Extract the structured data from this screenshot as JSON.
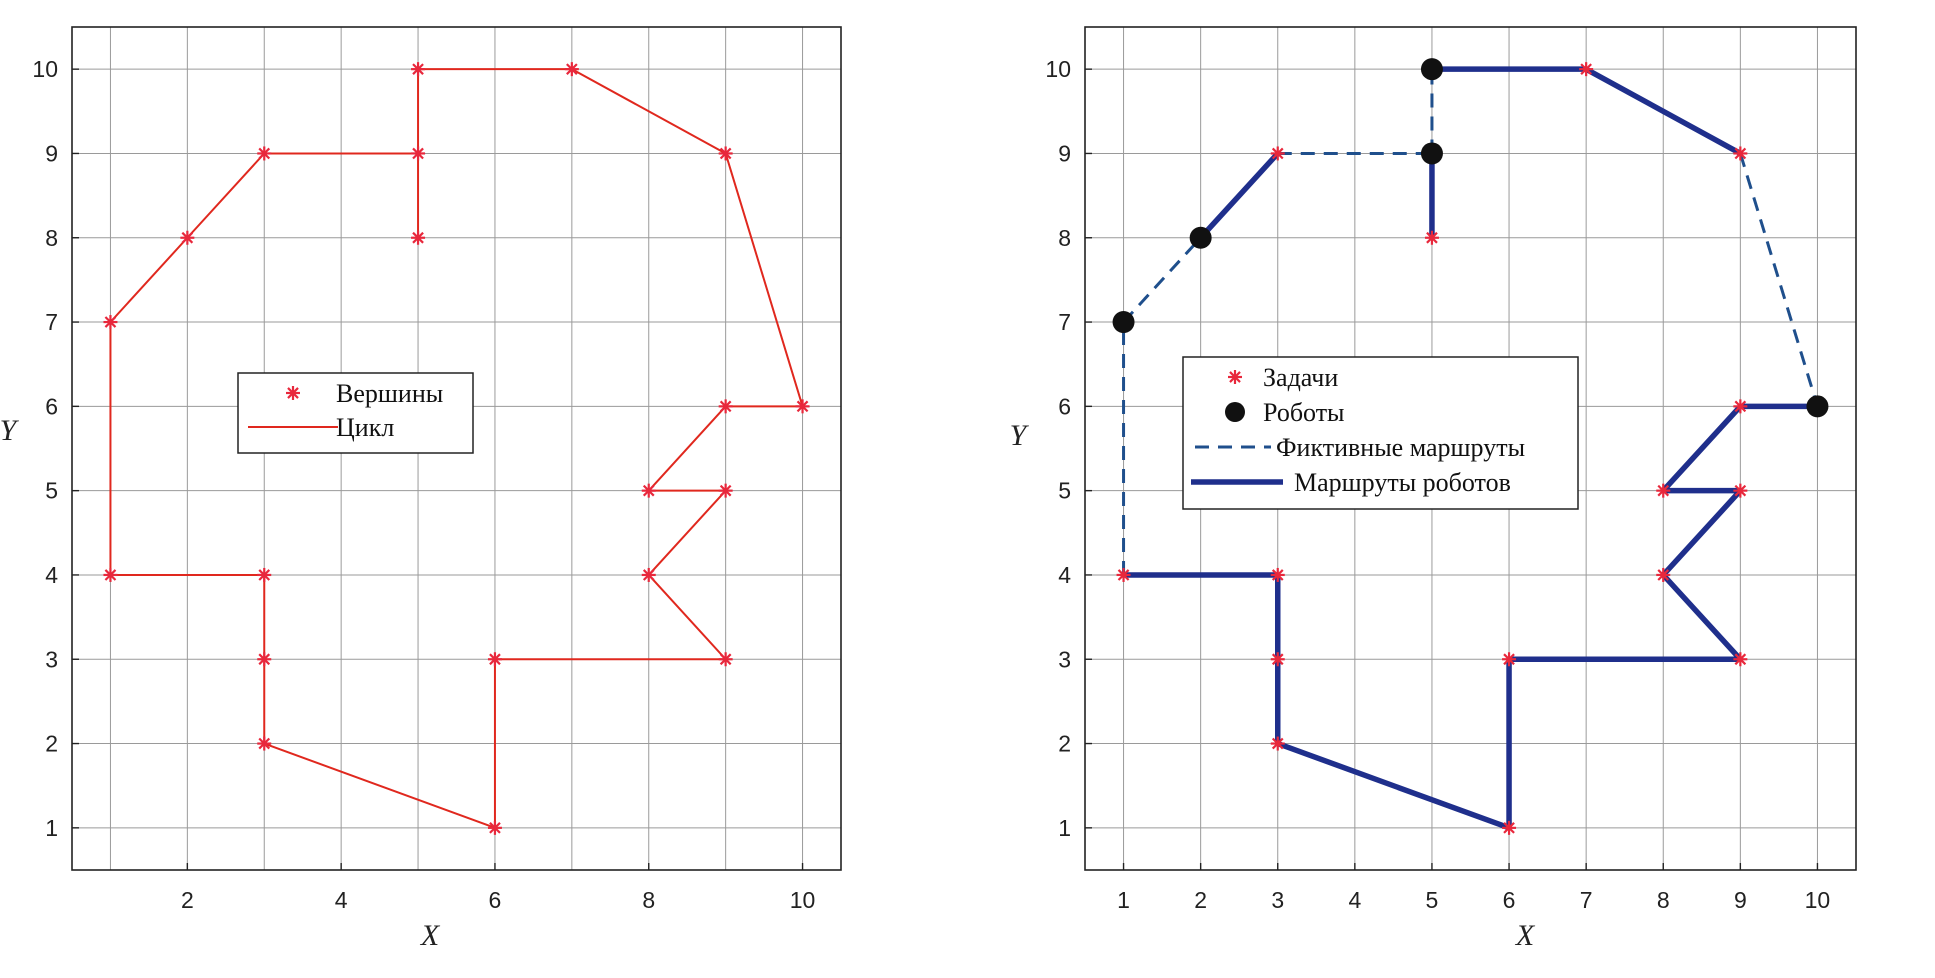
{
  "chart_data": [
    {
      "type": "line",
      "xlabel": "X",
      "ylabel": "Y",
      "xlim": [
        0.5,
        10.5
      ],
      "ylim": [
        0.5,
        10.5
      ],
      "x_gridlines": [
        1,
        2,
        3,
        4,
        5,
        6,
        7,
        8,
        9,
        10
      ],
      "y_gridlines": [
        1,
        2,
        3,
        4,
        5,
        6,
        7,
        8,
        9,
        10
      ],
      "xticks": [
        2,
        4,
        6,
        8,
        10
      ],
      "yticks": [
        1,
        2,
        3,
        4,
        5,
        6,
        7,
        8,
        9,
        10
      ],
      "grid": true,
      "colors": {
        "marker": "#e8283c",
        "line": "#e0281e"
      },
      "legend": {
        "placement": "center",
        "entries": [
          {
            "label": "Вершины",
            "kind": "marker"
          },
          {
            "label": "Цикл",
            "kind": "line"
          }
        ]
      },
      "series": [
        {
          "name": "Цикл",
          "kind": "line",
          "points": [
            [
              1,
              4
            ],
            [
              3,
              4
            ],
            [
              3,
              3
            ],
            [
              3,
              2
            ],
            [
              6,
              1
            ],
            [
              6,
              3
            ],
            [
              9,
              3
            ],
            [
              8,
              4
            ],
            [
              9,
              5
            ],
            [
              8,
              5
            ],
            [
              9,
              6
            ],
            [
              10,
              6
            ],
            [
              9,
              9
            ],
            [
              7,
              10
            ],
            [
              5,
              10
            ],
            [
              5,
              9
            ],
            [
              5,
              8
            ],
            [
              5,
              9
            ],
            [
              3,
              9
            ],
            [
              2,
              8
            ],
            [
              1,
              7
            ],
            [
              1,
              4
            ]
          ]
        },
        {
          "name": "Вершины",
          "kind": "marker",
          "points": [
            [
              1,
              4
            ],
            [
              3,
              4
            ],
            [
              3,
              3
            ],
            [
              3,
              2
            ],
            [
              6,
              1
            ],
            [
              6,
              3
            ],
            [
              9,
              3
            ],
            [
              8,
              4
            ],
            [
              9,
              5
            ],
            [
              8,
              5
            ],
            [
              9,
              6
            ],
            [
              10,
              6
            ],
            [
              9,
              9
            ],
            [
              7,
              10
            ],
            [
              5,
              10
            ],
            [
              5,
              9
            ],
            [
              5,
              8
            ],
            [
              3,
              9
            ],
            [
              2,
              8
            ],
            [
              1,
              7
            ]
          ]
        }
      ]
    },
    {
      "type": "line",
      "xlabel": "X",
      "ylabel": "Y",
      "xlim": [
        0.5,
        10.5
      ],
      "ylim": [
        0.5,
        10.5
      ],
      "x_gridlines": [
        1,
        2,
        3,
        4,
        5,
        6,
        7,
        8,
        9,
        10
      ],
      "y_gridlines": [
        1,
        2,
        3,
        4,
        5,
        6,
        7,
        8,
        9,
        10
      ],
      "xticks": [
        1,
        2,
        3,
        4,
        5,
        6,
        7,
        8,
        9,
        10
      ],
      "yticks": [
        1,
        2,
        3,
        4,
        5,
        6,
        7,
        8,
        9,
        10
      ],
      "grid": true,
      "colors": {
        "task": "#e8283c",
        "robot": "#111111",
        "route": "#1f2f8c",
        "dummy": "#1f4f8c"
      },
      "legend": {
        "placement": "center-left",
        "entries": [
          {
            "label": "Задачи",
            "kind": "marker"
          },
          {
            "label": "Роботы",
            "kind": "dot"
          },
          {
            "label": "Фиктивные маршруты",
            "kind": "dashed"
          },
          {
            "label": "Маршруты роботов",
            "kind": "thick"
          }
        ]
      },
      "series": [
        {
          "name": "Маршруты роботов",
          "kind": "thick",
          "points": [
            [
              1,
              7
            ],
            [
              1,
              7
            ]
          ]
        },
        {
          "name": "Маршруты роботов",
          "kind": "thick",
          "points": [
            [
              2,
              8
            ],
            [
              3,
              9
            ]
          ]
        },
        {
          "name": "Маршруты роботов",
          "kind": "thick",
          "points": [
            [
              5,
              9
            ],
            [
              5,
              8
            ]
          ]
        },
        {
          "name": "Маршруты роботов",
          "kind": "thick",
          "points": [
            [
              5,
              10
            ],
            [
              7,
              10
            ],
            [
              9,
              9
            ]
          ]
        },
        {
          "name": "Маршруты роботов",
          "kind": "thick",
          "points": [
            [
              10,
              6
            ],
            [
              9,
              6
            ],
            [
              8,
              5
            ],
            [
              9,
              5
            ],
            [
              8,
              4
            ],
            [
              9,
              3
            ],
            [
              6,
              3
            ],
            [
              6,
              1
            ],
            [
              3,
              2
            ],
            [
              3,
              3
            ],
            [
              3,
              4
            ],
            [
              1,
              4
            ]
          ]
        },
        {
          "name": "Фиктивные маршруты",
          "kind": "dashed",
          "points": [
            [
              1,
              7
            ],
            [
              2,
              8
            ]
          ]
        },
        {
          "name": "Фиктивные маршруты",
          "kind": "dashed",
          "points": [
            [
              3,
              9
            ],
            [
              5,
              9
            ]
          ]
        },
        {
          "name": "Фиктивные маршруты",
          "kind": "dashed",
          "points": [
            [
              5,
              9
            ],
            [
              5,
              10
            ]
          ]
        },
        {
          "name": "Фиктивные маршруты",
          "kind": "dashed",
          "points": [
            [
              9,
              9
            ],
            [
              10,
              6
            ]
          ]
        },
        {
          "name": "Фиктивные маршруты",
          "kind": "dashed",
          "points": [
            [
              1,
              4
            ],
            [
              1,
              7
            ]
          ]
        },
        {
          "name": "Задачи",
          "kind": "marker",
          "points": [
            [
              1,
              4
            ],
            [
              3,
              4
            ],
            [
              3,
              3
            ],
            [
              3,
              2
            ],
            [
              6,
              1
            ],
            [
              6,
              3
            ],
            [
              9,
              3
            ],
            [
              8,
              4
            ],
            [
              9,
              5
            ],
            [
              8,
              5
            ],
            [
              9,
              6
            ],
            [
              7,
              10
            ],
            [
              9,
              9
            ],
            [
              5,
              8
            ],
            [
              3,
              9
            ]
          ]
        },
        {
          "name": "Роботы",
          "kind": "dot",
          "points": [
            [
              1,
              7
            ],
            [
              2,
              8
            ],
            [
              5,
              10
            ],
            [
              5,
              9
            ],
            [
              10,
              6
            ]
          ]
        }
      ]
    }
  ]
}
